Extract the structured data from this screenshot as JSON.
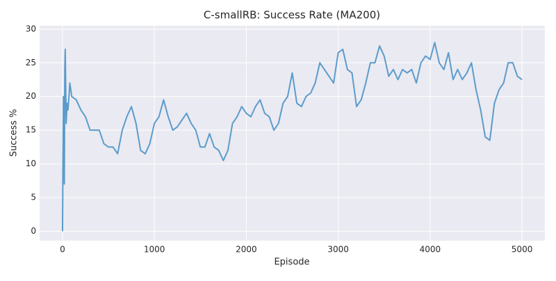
{
  "chart_data": {
    "type": "line",
    "title": "C-smallRB: Success Rate (MA200)",
    "x_label": "Episode",
    "y_label": "Success %",
    "color": "#5b9bcb",
    "grid": true,
    "x": [
      0,
      10,
      20,
      25,
      30,
      40,
      50,
      60,
      80,
      100,
      150,
      200,
      250,
      300,
      350,
      400,
      450,
      500,
      550,
      600,
      650,
      700,
      750,
      800,
      850,
      900,
      950,
      1000,
      1050,
      1100,
      1150,
      1200,
      1250,
      1300,
      1350,
      1400,
      1450,
      1500,
      1550,
      1600,
      1650,
      1700,
      1750,
      1800,
      1850,
      1900,
      1950,
      2000,
      2050,
      2100,
      2150,
      2200,
      2250,
      2300,
      2350,
      2400,
      2450,
      2500,
      2550,
      2600,
      2650,
      2700,
      2750,
      2800,
      2850,
      2900,
      2950,
      3000,
      3050,
      3100,
      3150,
      3200,
      3250,
      3300,
      3350,
      3400,
      3450,
      3500,
      3550,
      3600,
      3650,
      3700,
      3750,
      3800,
      3850,
      3900,
      3950,
      4000,
      4050,
      4100,
      4150,
      4200,
      4250,
      4300,
      4350,
      4400,
      4450,
      4500,
      4550,
      4600,
      4650,
      4700,
      4750,
      4800,
      4850,
      4900,
      4950,
      5000
    ],
    "values": [
      0,
      20,
      7,
      24,
      27,
      16,
      19,
      18,
      22,
      20,
      19.5,
      18,
      17,
      15,
      15,
      15,
      13,
      12.5,
      12.5,
      11.5,
      15,
      17,
      18.5,
      16,
      12,
      11.5,
      13,
      16,
      17,
      19.5,
      17,
      15,
      15.5,
      16.5,
      17.5,
      16,
      15,
      12.5,
      12.5,
      14.5,
      12.5,
      12,
      10.5,
      12,
      16,
      17,
      18.5,
      17.5,
      17,
      18.5,
      19.5,
      17.5,
      17,
      15,
      16,
      19,
      20,
      23.5,
      19,
      18.5,
      20,
      20.5,
      22,
      25,
      24,
      23,
      22,
      26.5,
      27,
      24,
      23.5,
      18.5,
      19.5,
      22,
      25,
      25,
      27.5,
      26,
      23,
      24,
      22.5,
      24,
      23.5,
      24,
      22,
      25,
      26,
      25.5,
      28,
      25,
      24,
      26.5,
      22.5,
      24,
      22.5,
      23.5,
      25,
      21,
      18,
      14,
      13.5,
      19,
      21,
      22,
      25,
      25,
      23,
      22.5
    ],
    "xlim": [
      -249,
      5249
    ],
    "ylim": [
      -1.4,
      30.5
    ],
    "xticks": [
      0,
      1000,
      2000,
      3000,
      4000,
      5000
    ],
    "yticks": [
      0,
      5,
      10,
      15,
      20,
      25,
      30
    ]
  }
}
